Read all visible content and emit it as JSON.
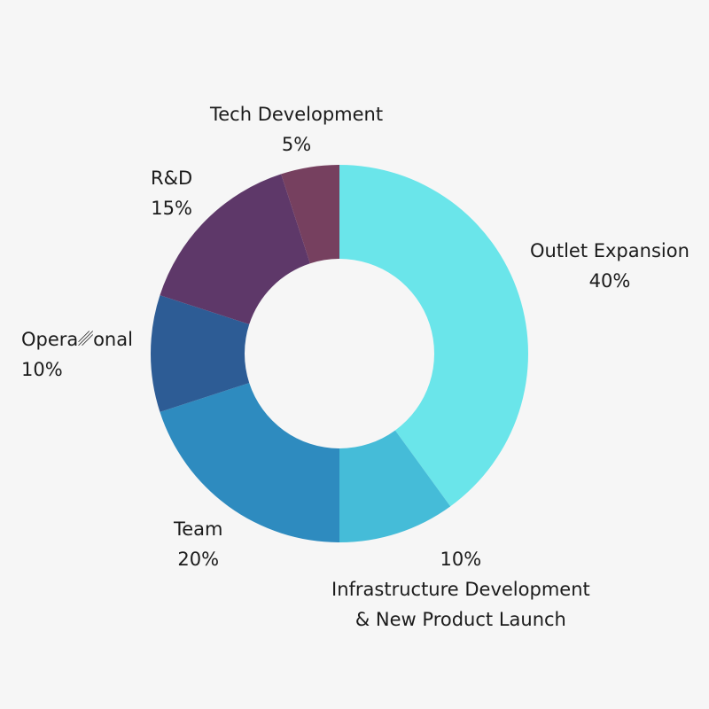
{
  "chart_data": {
    "type": "pie",
    "donut": true,
    "categories": [
      "Outlet Expansion",
      "Infrastructure Development & New Product Launch",
      "Team",
      "Operational",
      "R&D",
      "Tech Development"
    ],
    "values": [
      40,
      10,
      20,
      10,
      15,
      5
    ],
    "unit": "%",
    "colors": [
      "#6ae5ea",
      "#45bcd8",
      "#2e8bbf",
      "#2d5c95",
      "#5e3869",
      "#76405f"
    ],
    "labels": [
      {
        "name_lines": [
          "Outlet Expansion"
        ],
        "value": "40%"
      },
      {
        "name_lines": [
          "Infrastructure Development",
          "& New Product Launch"
        ],
        "value": "10%"
      },
      {
        "name_lines": [
          "Team"
        ],
        "value": "20%"
      },
      {
        "name_lines": [
          "Opera␥onal"
        ],
        "value": "10%"
      },
      {
        "name_lines": [
          "R&D"
        ],
        "value": "15%"
      },
      {
        "name_lines": [
          "Tech Development"
        ],
        "value": "5%"
      }
    ]
  }
}
